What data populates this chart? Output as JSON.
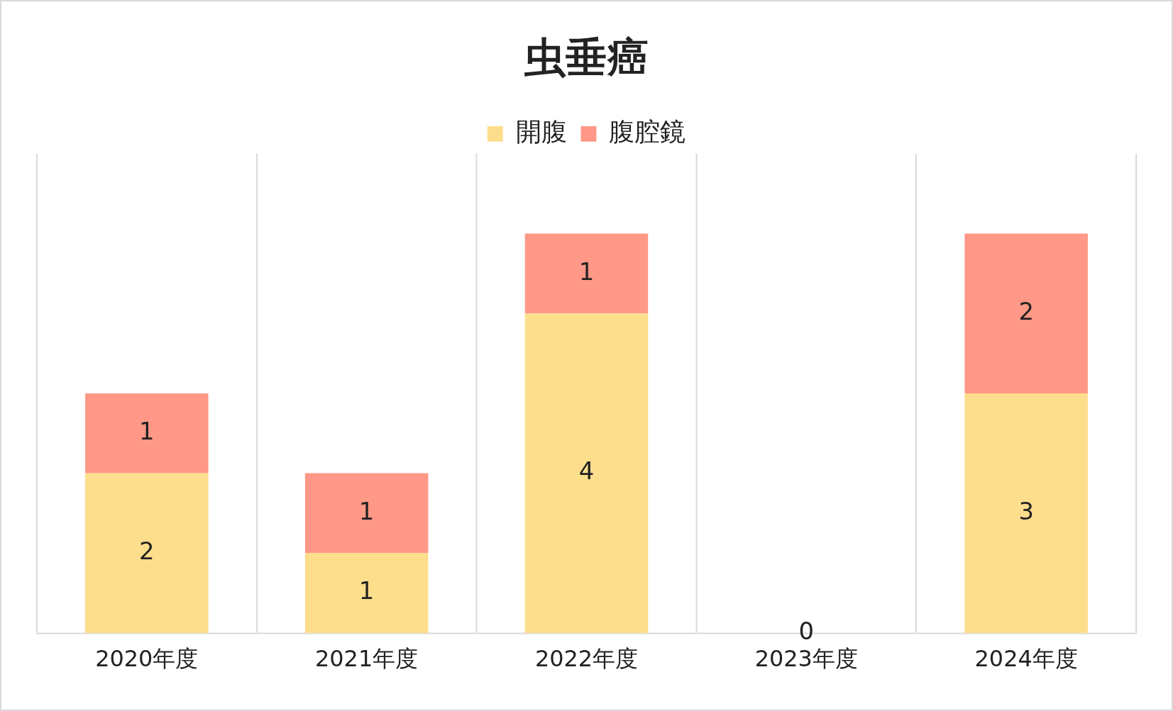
{
  "chart_data": {
    "type": "bar",
    "title": "虫垂癌",
    "categories": [
      "2020年度",
      "2021年度",
      "2022年度",
      "2023年度",
      "2024年度"
    ],
    "stacked": true,
    "ylim": [
      0,
      6
    ],
    "tick_labels": "x",
    "grid": "x",
    "legend": "top",
    "series": [
      {
        "name": "開腹",
        "color": "#fdde8c",
        "values": [
          2,
          1,
          4,
          0,
          3
        ],
        "value_labels": [
          "2",
          "1",
          "4",
          "0",
          "3"
        ]
      },
      {
        "name": "腹腔鏡",
        "color": "#ff9886",
        "values": [
          1,
          1,
          1,
          0,
          2
        ],
        "value_labels": [
          "1",
          "1",
          "1",
          null,
          "2"
        ]
      }
    ]
  }
}
